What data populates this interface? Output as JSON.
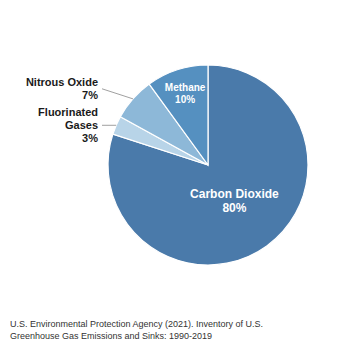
{
  "chart_data": {
    "type": "pie",
    "categories": [
      "Carbon Dioxide",
      "Fluorinated\nGases",
      "Nitrous Oxide",
      "Methane"
    ],
    "values": [
      80,
      3,
      7,
      10
    ],
    "value_labels": [
      "80%",
      "3%",
      "7%",
      "10%"
    ],
    "colors": [
      "#4a7aaa",
      "#b8d4e8",
      "#8db8d8",
      "#5590c0"
    ],
    "data_labels": true,
    "annotations": [
      "U.S. Environmental Protection Agency (2021). Inventory of U.S.\nGreenhouse Gas Emissions and Sinks: 1990-2019"
    ]
  }
}
